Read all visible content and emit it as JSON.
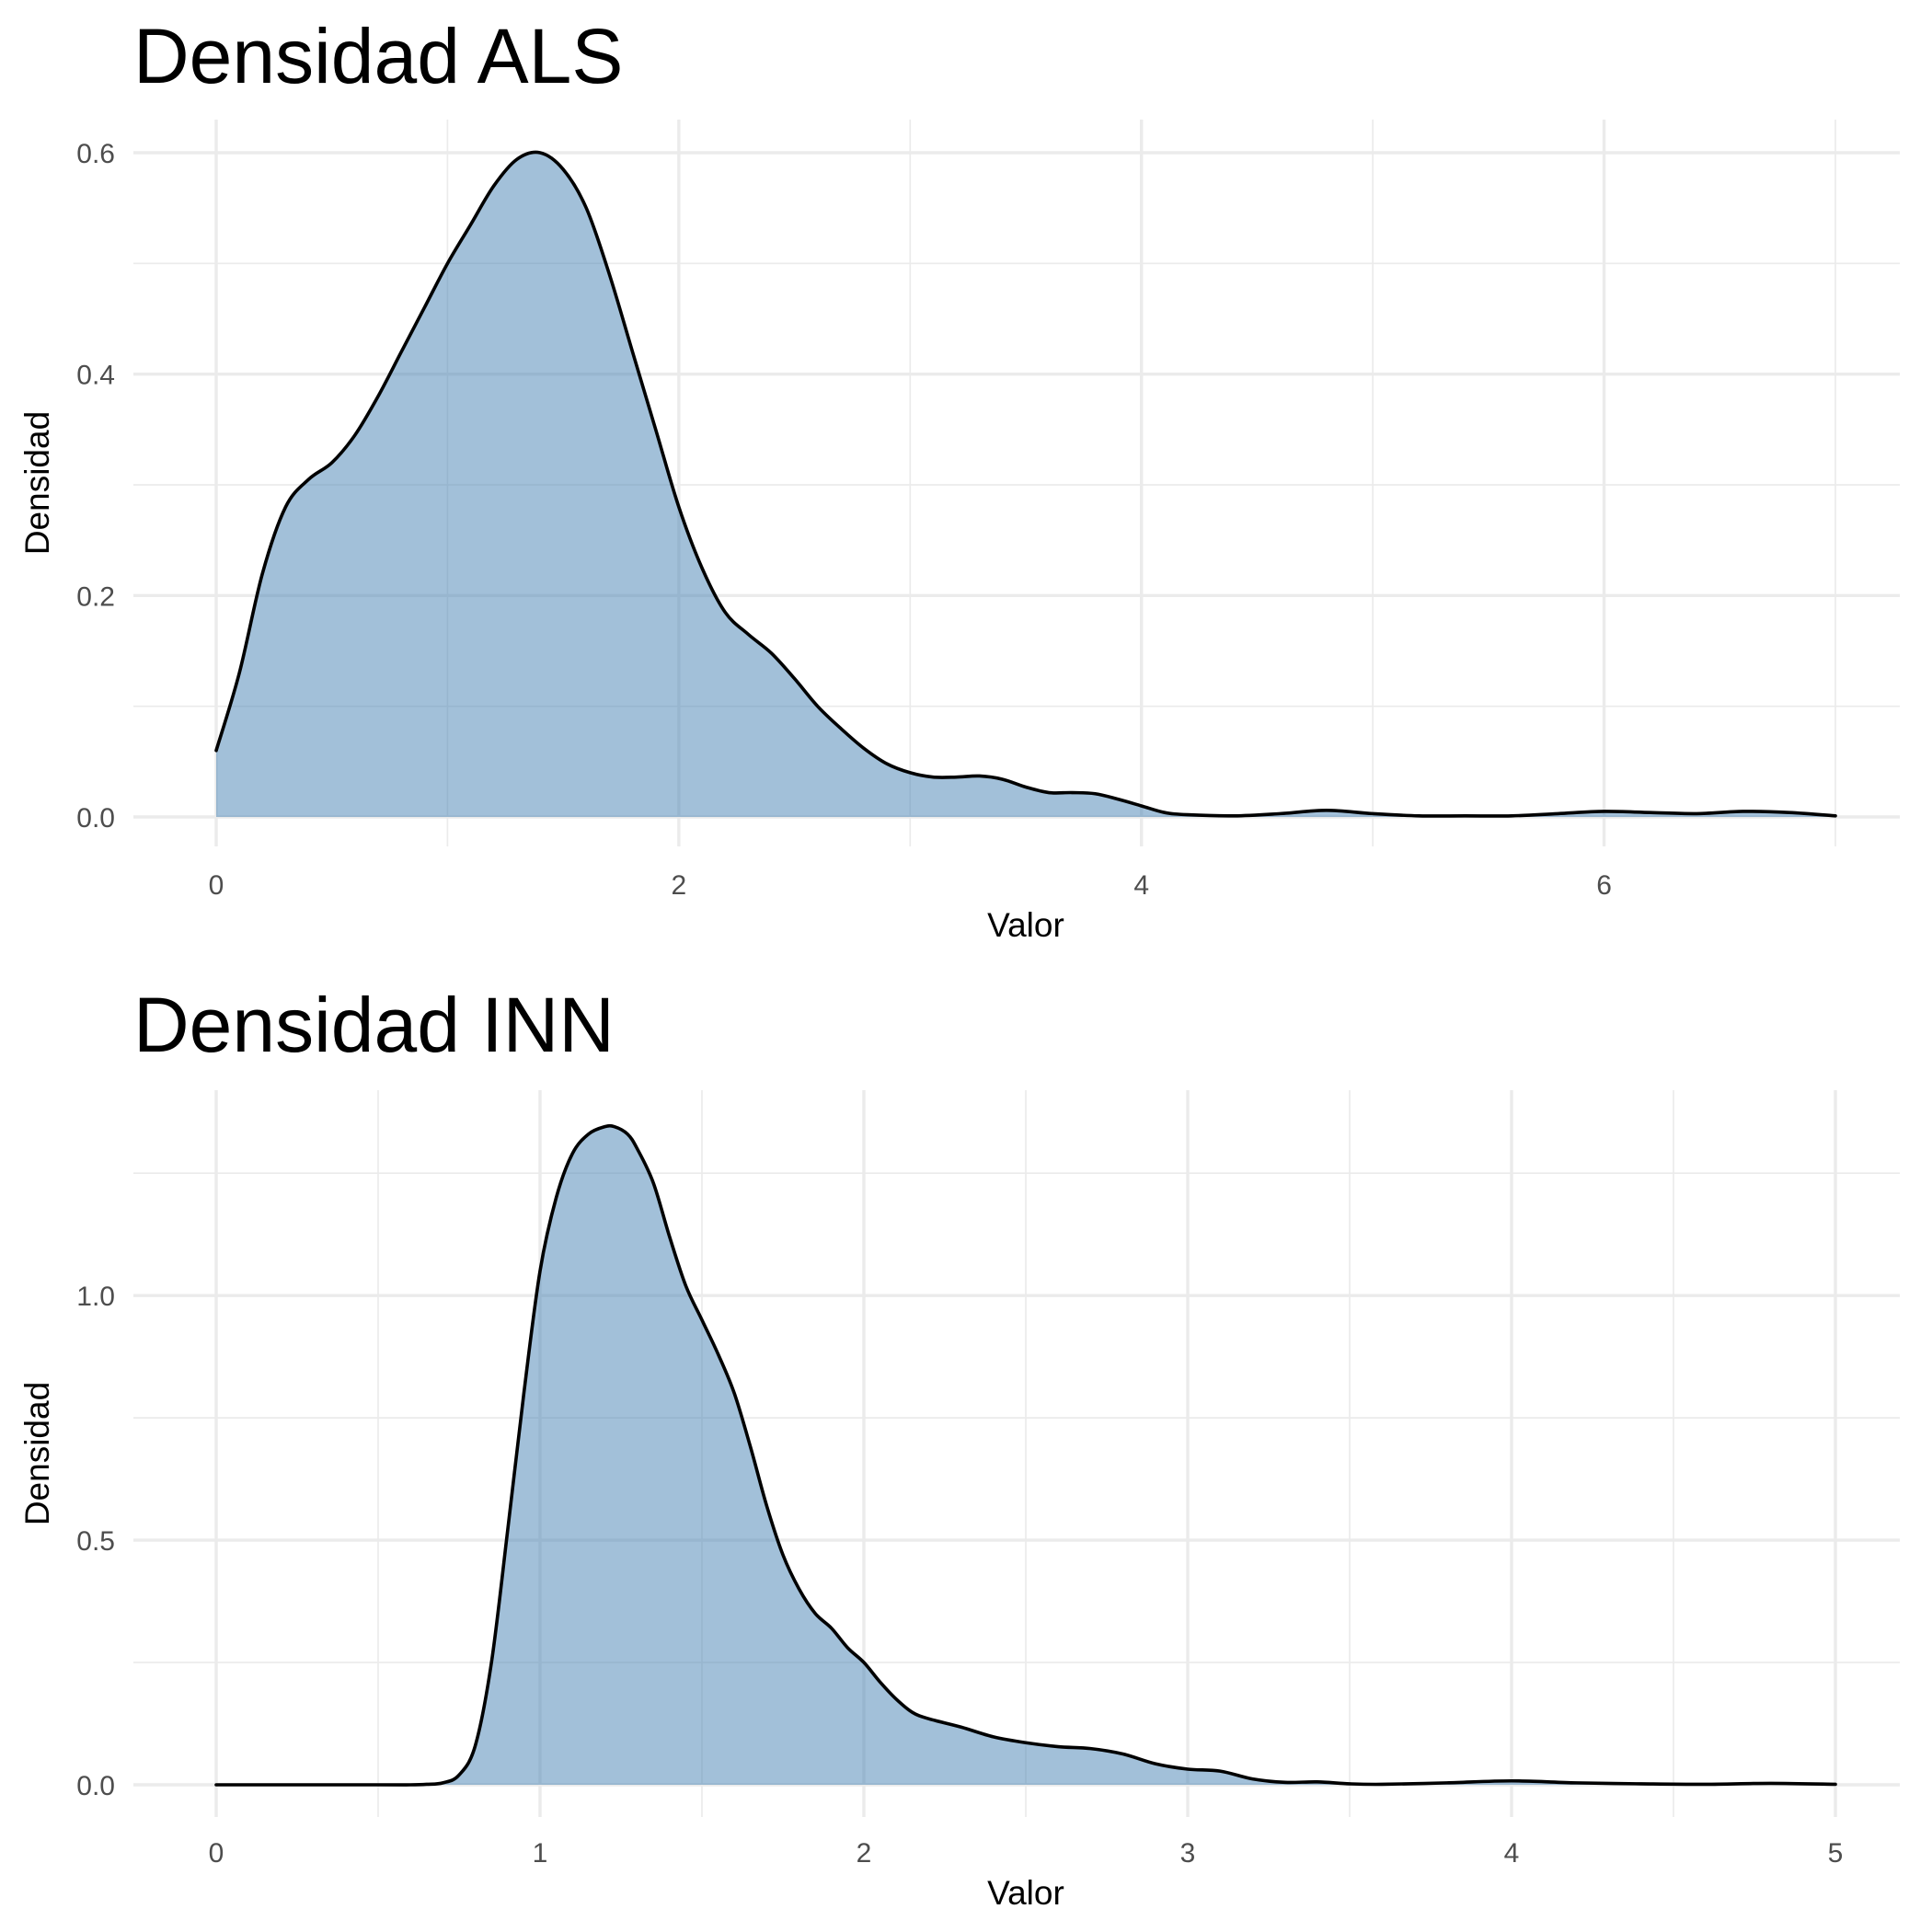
{
  "chart_data": [
    {
      "type": "area",
      "title": "Densidad ALS",
      "xlabel": "Valor",
      "ylabel": "Densidad",
      "xlim": [
        0,
        7
      ],
      "ylim": [
        0,
        0.6
      ],
      "x_ticks": [
        0,
        2,
        4,
        6
      ],
      "x_minor_ticks": [
        1,
        3,
        5,
        7
      ],
      "y_ticks": [
        0.0,
        0.2,
        0.4,
        0.6
      ],
      "y_tick_labels": [
        "0.0",
        "0.2",
        "0.4",
        "0.6"
      ],
      "y_minor_ticks": [
        0.1,
        0.3,
        0.5
      ],
      "grid": true,
      "fill_color": "#4682b4",
      "line_color": "#000000",
      "series": [
        {
          "x": [
            0,
            0.1,
            0.2,
            0.3,
            0.4,
            0.5,
            0.6,
            0.7,
            0.8,
            0.9,
            1.0,
            1.1,
            1.2,
            1.3,
            1.4,
            1.5,
            1.6,
            1.7,
            1.8,
            1.9,
            2.0,
            2.1,
            2.2,
            2.3,
            2.4,
            2.5,
            2.6,
            2.7,
            2.8,
            2.9,
            3.0,
            3.1,
            3.2,
            3.3,
            3.4,
            3.5,
            3.6,
            3.7,
            3.8,
            3.9,
            4.0,
            4.1,
            4.2,
            4.4,
            4.6,
            4.8,
            5.0,
            5.2,
            5.4,
            5.6,
            5.8,
            6.0,
            6.2,
            6.4,
            6.6,
            6.8,
            7.0
          ],
          "y": [
            0.06,
            0.13,
            0.22,
            0.28,
            0.305,
            0.32,
            0.345,
            0.38,
            0.42,
            0.46,
            0.5,
            0.535,
            0.57,
            0.594,
            0.6,
            0.585,
            0.55,
            0.49,
            0.42,
            0.35,
            0.28,
            0.225,
            0.185,
            0.165,
            0.148,
            0.125,
            0.1,
            0.08,
            0.062,
            0.048,
            0.04,
            0.036,
            0.036,
            0.037,
            0.034,
            0.027,
            0.022,
            0.022,
            0.021,
            0.016,
            0.01,
            0.004,
            0.002,
            0.001,
            0.003,
            0.006,
            0.003,
            0.001,
            0.001,
            0.001,
            0.003,
            0.005,
            0.004,
            0.003,
            0.005,
            0.004,
            0.001
          ]
        }
      ]
    },
    {
      "type": "area",
      "title": "Densidad INN",
      "xlabel": "Valor",
      "ylabel": "Densidad",
      "xlim": [
        0,
        5
      ],
      "ylim": [
        0,
        1.35
      ],
      "x_ticks": [
        0,
        1,
        2,
        3,
        4,
        5
      ],
      "x_minor_ticks": [
        0.5,
        1.5,
        2.5,
        3.5,
        4.5
      ],
      "y_ticks": [
        0.0,
        0.5,
        1.0
      ],
      "y_tick_labels": [
        "0.0",
        "0.5",
        "1.0"
      ],
      "y_minor_ticks": [
        0.25,
        0.75,
        1.25
      ],
      "grid": true,
      "fill_color": "#4682b4",
      "line_color": "#000000",
      "series": [
        {
          "x": [
            0,
            0.5,
            0.6,
            0.65,
            0.7,
            0.75,
            0.8,
            0.85,
            0.9,
            0.95,
            1.0,
            1.05,
            1.1,
            1.15,
            1.2,
            1.23,
            1.27,
            1.3,
            1.35,
            1.4,
            1.45,
            1.5,
            1.55,
            1.6,
            1.65,
            1.7,
            1.75,
            1.8,
            1.85,
            1.9,
            1.95,
            2.0,
            2.05,
            2.1,
            2.15,
            2.2,
            2.3,
            2.4,
            2.5,
            2.6,
            2.7,
            2.8,
            2.9,
            3.0,
            3.1,
            3.2,
            3.3,
            3.4,
            3.5,
            3.6,
            3.8,
            4.0,
            4.2,
            4.4,
            4.6,
            4.8,
            5.0
          ],
          "y": [
            0.0,
            0.0,
            0.0,
            0.001,
            0.004,
            0.02,
            0.08,
            0.25,
            0.52,
            0.8,
            1.05,
            1.2,
            1.29,
            1.33,
            1.345,
            1.345,
            1.33,
            1.3,
            1.23,
            1.12,
            1.02,
            0.95,
            0.88,
            0.8,
            0.69,
            0.57,
            0.47,
            0.4,
            0.35,
            0.32,
            0.28,
            0.25,
            0.21,
            0.175,
            0.148,
            0.135,
            0.118,
            0.098,
            0.086,
            0.078,
            0.074,
            0.063,
            0.043,
            0.032,
            0.028,
            0.012,
            0.005,
            0.006,
            0.002,
            0.001,
            0.004,
            0.008,
            0.004,
            0.002,
            0.001,
            0.003,
            0.001
          ]
        }
      ]
    }
  ]
}
